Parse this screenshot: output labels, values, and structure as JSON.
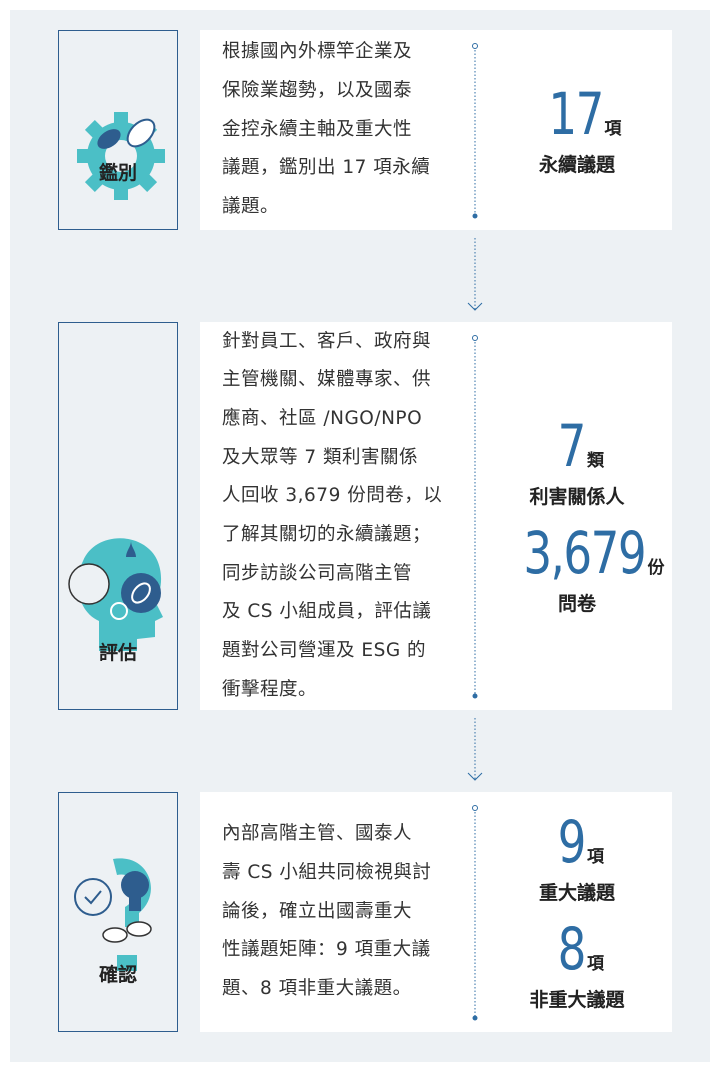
{
  "steps": [
    {
      "label": "鑑別",
      "lines": [
        "根據國內外標竿企業及",
        "保險業趨勢，以及國泰",
        "金控永續主軸及重大性",
        "議題，鑑別出 17 項永續",
        "議題。"
      ],
      "stats": [
        {
          "number": "17",
          "unit": "項",
          "label": "永續議題"
        }
      ]
    },
    {
      "label": "評估",
      "lines": [
        "針對員工、客戶、政府與",
        "主管機關、媒體專家、供",
        "應商、社區 /NGO/NPO",
        "及大眾等 7 類利害關係",
        "人回收 3,679 份問卷，以",
        "了解其關切的永續議題；",
        "同步訪談公司高階主管",
        "及 CS 小組成員，評估議",
        "題對公司營運及 ESG 的",
        "衝擊程度。"
      ],
      "stats": [
        {
          "number": "7",
          "unit": "類",
          "label": "利害關係人"
        },
        {
          "number": "3,679",
          "unit": "份",
          "label": "問卷"
        }
      ]
    },
    {
      "label": "確認",
      "lines": [
        "內部高階主管、國泰人",
        "壽 CS 小組共同檢視與討",
        "論後，確立出國壽重大",
        "性議題矩陣：9 項重大議",
        "題、8 項非重大議題。"
      ],
      "stats": [
        {
          "number": "9",
          "unit": "項",
          "label": "重大議題"
        },
        {
          "number": "8",
          "unit": "項",
          "label": "非重大議題"
        }
      ]
    }
  ]
}
